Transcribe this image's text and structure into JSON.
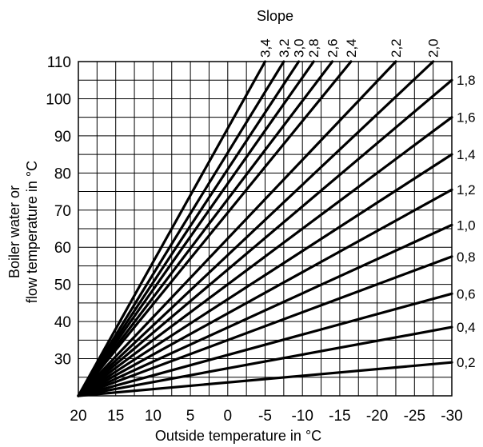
{
  "chart_data": {
    "type": "line",
    "title": "",
    "xlabel": "Outside temperature in °C",
    "ylabel_lines": [
      "Boiler water or",
      "flow temperature in °C"
    ],
    "legend_title": "Slope",
    "xlim": [
      20,
      -30
    ],
    "ylim": [
      20,
      110
    ],
    "x_ticks": [
      20,
      15,
      10,
      5,
      0,
      -5,
      -10,
      -15,
      -20,
      -25,
      -30
    ],
    "x_tick_labels": [
      "20",
      "15",
      "10",
      "5",
      "0",
      "-5",
      "-10",
      "-15",
      "-20",
      "-25",
      "-30"
    ],
    "y_ticks": [
      30,
      40,
      50,
      60,
      70,
      80,
      90,
      100,
      110
    ],
    "y_tick_labels": [
      "30",
      "40",
      "50",
      "60",
      "70",
      "80",
      "90",
      "100",
      "110"
    ],
    "grid": true,
    "origin": {
      "x": 20,
      "y": 20
    },
    "series": [
      {
        "name": "0,2",
        "slope": 0.2,
        "points": [
          [
            20,
            20
          ],
          [
            -30,
            29
          ]
        ]
      },
      {
        "name": "0,4",
        "slope": 0.4,
        "points": [
          [
            20,
            20
          ],
          [
            -30,
            38.5
          ]
        ]
      },
      {
        "name": "0,6",
        "slope": 0.6,
        "points": [
          [
            20,
            20
          ],
          [
            -30,
            47.5
          ]
        ]
      },
      {
        "name": "0,8",
        "slope": 0.8,
        "points": [
          [
            20,
            20
          ],
          [
            -30,
            57.5
          ]
        ]
      },
      {
        "name": "1,0",
        "slope": 1.0,
        "points": [
          [
            20,
            20
          ],
          [
            -30,
            66
          ]
        ]
      },
      {
        "name": "1,2",
        "slope": 1.2,
        "points": [
          [
            20,
            20
          ],
          [
            -30,
            75.5
          ]
        ]
      },
      {
        "name": "1,4",
        "slope": 1.4,
        "points": [
          [
            20,
            20
          ],
          [
            -30,
            85
          ]
        ]
      },
      {
        "name": "1,6",
        "slope": 1.6,
        "points": [
          [
            20,
            20
          ],
          [
            -30,
            95
          ]
        ]
      },
      {
        "name": "1,8",
        "slope": 1.8,
        "points": [
          [
            20,
            20
          ],
          [
            -30,
            105
          ]
        ]
      },
      {
        "name": "2,0",
        "slope": 2.0,
        "points": [
          [
            20,
            20
          ],
          [
            -27.5,
            110
          ]
        ]
      },
      {
        "name": "2,2",
        "slope": 2.2,
        "points": [
          [
            20,
            20
          ],
          [
            -22.5,
            110
          ]
        ]
      },
      {
        "name": "2,4",
        "slope": 2.4,
        "points": [
          [
            20,
            20
          ],
          [
            -16.5,
            110
          ]
        ]
      },
      {
        "name": "2,6",
        "slope": 2.6,
        "points": [
          [
            20,
            20
          ],
          [
            -14,
            110
          ]
        ]
      },
      {
        "name": "2,8",
        "slope": 2.8,
        "points": [
          [
            20,
            20
          ],
          [
            -11.5,
            110
          ]
        ]
      },
      {
        "name": "3,0",
        "slope": 3.0,
        "points": [
          [
            20,
            20
          ],
          [
            -9.5,
            110
          ]
        ]
      },
      {
        "name": "3,2",
        "slope": 3.2,
        "points": [
          [
            20,
            20
          ],
          [
            -7.5,
            110
          ]
        ]
      },
      {
        "name": "3,4",
        "slope": 3.4,
        "points": [
          [
            20,
            20
          ],
          [
            -5,
            110
          ]
        ]
      }
    ]
  }
}
